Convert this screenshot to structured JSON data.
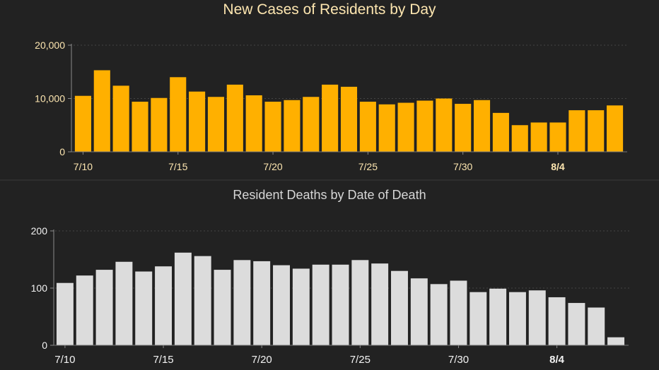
{
  "chart_data": [
    {
      "type": "bar",
      "title": "New Cases of Residents by Day",
      "xlabel": "",
      "ylabel": "",
      "categories": [
        "7/10",
        "7/11",
        "7/12",
        "7/13",
        "7/14",
        "7/15",
        "7/16",
        "7/17",
        "7/18",
        "7/19",
        "7/20",
        "7/21",
        "7/22",
        "7/23",
        "7/24",
        "7/25",
        "7/26",
        "7/27",
        "7/28",
        "7/29",
        "7/30",
        "7/31",
        "8/1",
        "8/2",
        "8/3",
        "8/4",
        "8/5",
        "8/6",
        "8/7"
      ],
      "values": [
        10500,
        15300,
        12400,
        9400,
        10100,
        14000,
        11300,
        10300,
        12600,
        10600,
        9400,
        9700,
        10300,
        12600,
        12200,
        9400,
        8900,
        9200,
        9600,
        10000,
        9000,
        9700,
        7300,
        5000,
        5500,
        5500,
        7800,
        7800,
        8700
      ],
      "ylim": [
        0,
        20000
      ],
      "yticks": [
        0,
        10000,
        20000
      ],
      "ytick_labels": [
        "0",
        "10,000",
        "20,000"
      ],
      "xtick_labels": [
        "7/10",
        "7/15",
        "7/20",
        "7/25",
        "7/30",
        "8/4"
      ],
      "grid": true,
      "bar_color": "#ffb000",
      "title_color": "#fde6b0",
      "tick_color": "#fde6b0"
    },
    {
      "type": "bar",
      "title": "Resident Deaths by Date of Death",
      "xlabel": "",
      "ylabel": "",
      "categories": [
        "7/10",
        "7/11",
        "7/12",
        "7/13",
        "7/14",
        "7/15",
        "7/16",
        "7/17",
        "7/18",
        "7/19",
        "7/20",
        "7/21",
        "7/22",
        "7/23",
        "7/24",
        "7/25",
        "7/26",
        "7/27",
        "7/28",
        "7/29",
        "7/30",
        "7/31",
        "8/1",
        "8/2",
        "8/3",
        "8/4",
        "8/5",
        "8/6",
        "8/7"
      ],
      "values": [
        109,
        122,
        132,
        146,
        129,
        138,
        162,
        156,
        132,
        149,
        147,
        140,
        134,
        141,
        141,
        149,
        143,
        130,
        117,
        107,
        113,
        93,
        99,
        93,
        96,
        84,
        74,
        66,
        14
      ],
      "ylim": [
        0,
        200
      ],
      "yticks": [
        0,
        100,
        200
      ],
      "ytick_labels": [
        "0",
        "100",
        "200"
      ],
      "xtick_labels": [
        "7/10",
        "7/15",
        "7/20",
        "7/25",
        "7/30",
        "8/4"
      ],
      "grid": true,
      "bar_color": "#dcdcdc",
      "title_color": "#d6d6d6",
      "tick_color": "#f2f2f2"
    }
  ]
}
